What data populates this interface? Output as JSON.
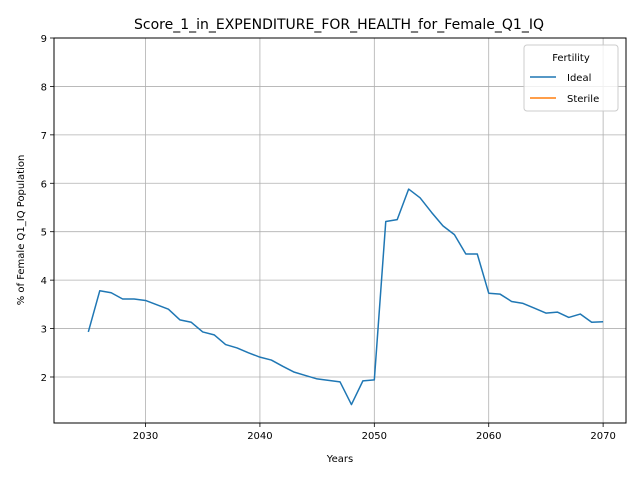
{
  "chart_data": {
    "type": "line",
    "title": "Score_1_in_EXPENDITURE_FOR_HEALTH_for_Female_Q1_IQ",
    "xlabel": "Years",
    "ylabel": "% of Female Q1_IQ Population",
    "xlim": [
      2022,
      2072
    ],
    "ylim": [
      1.05,
      9.0
    ],
    "xticks": [
      2030,
      2040,
      2050,
      2060,
      2070
    ],
    "yticks": [
      2,
      3,
      4,
      5,
      6,
      7,
      8,
      9
    ],
    "grid": true,
    "legend": {
      "title": "Fertility",
      "placement": "top-right"
    },
    "series": [
      {
        "name": "Ideal",
        "color": "#1f77b4",
        "x": [
          2025,
          2026,
          2027,
          2028,
          2029,
          2030,
          2031,
          2032,
          2033,
          2034,
          2035,
          2036,
          2037,
          2038,
          2039,
          2040,
          2041,
          2042,
          2043,
          2044,
          2045,
          2046,
          2047,
          2048,
          2049,
          2050,
          2051,
          2052,
          2053,
          2054,
          2055,
          2056,
          2057,
          2058,
          2059,
          2060,
          2061,
          2062,
          2063,
          2064,
          2065,
          2066,
          2067,
          2068,
          2069,
          2070
        ],
        "values": [
          2.93,
          3.78,
          3.74,
          3.61,
          3.61,
          3.58,
          3.49,
          3.4,
          3.18,
          3.13,
          2.93,
          2.87,
          2.67,
          2.6,
          2.5,
          2.41,
          2.35,
          2.22,
          2.1,
          2.03,
          1.96,
          1.93,
          1.9,
          1.43,
          1.92,
          1.94,
          5.21,
          5.25,
          5.88,
          5.7,
          5.4,
          5.12,
          4.94,
          4.54,
          4.54,
          3.73,
          3.71,
          3.56,
          3.52,
          3.42,
          3.32,
          3.34,
          3.23,
          3.3,
          3.13,
          3.14
        ]
      },
      {
        "name": "Sterile",
        "color": "#ff7f0e",
        "x": [],
        "values": []
      }
    ]
  }
}
